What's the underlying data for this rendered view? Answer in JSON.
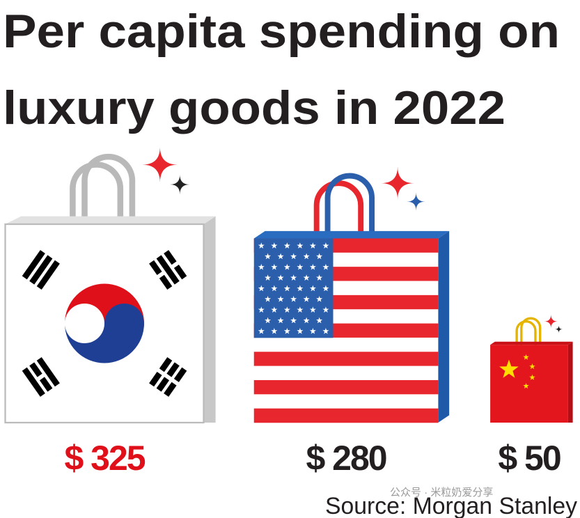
{
  "chart_data": {
    "type": "pictogram",
    "title": [
      "Per capita spending on",
      "luxury goods in 2022"
    ],
    "categories": [
      null,
      null,
      null
    ],
    "values": [
      325,
      280,
      50
    ],
    "value_labels": [
      "$ 325",
      "$ 280",
      "$ 50"
    ],
    "label_colors": [
      "#e0101a",
      "#231f20",
      "#231f20"
    ],
    "source": "Source: Morgan Stanley",
    "watermark": "公众号 · 米粒奶爱分享"
  }
}
